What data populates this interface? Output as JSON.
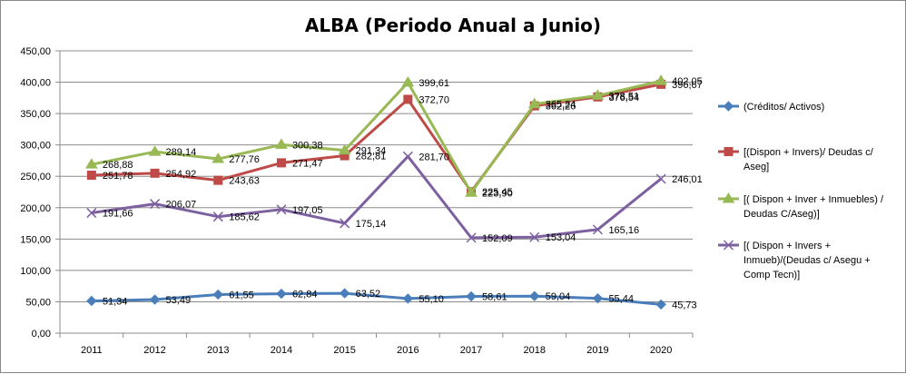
{
  "chart_data": {
    "type": "line",
    "title": "ALBA (Periodo Anual a Junio)",
    "xlabel": "",
    "ylabel": "",
    "ylim": [
      0,
      450
    ],
    "ytick_step": 50,
    "ytick_labels": [
      "0,00",
      "50,00",
      "100,00",
      "150,00",
      "200,00",
      "250,00",
      "300,00",
      "350,00",
      "400,00",
      "450,00"
    ],
    "grid": true,
    "legend_position": "right",
    "categories": [
      "2011",
      "2012",
      "2013",
      "2014",
      "2015",
      "2016",
      "2017",
      "2018",
      "2019",
      "2020"
    ],
    "series": [
      {
        "name": "(Créditos/ Activos)",
        "color": "#4a7ebb",
        "marker": "diamond",
        "values": [
          51.34,
          53.49,
          61.55,
          62.84,
          63.52,
          55.1,
          58.61,
          59.04,
          55.44,
          45.73
        ],
        "labels": [
          "51,34",
          "53,49",
          "61,55",
          "62,84",
          "63,52",
          "55,10",
          "58,61",
          "59,04",
          "55,44",
          "45,73"
        ]
      },
      {
        "name": "[(Dispon + Invers)/ Deudas c/ Aseg]",
        "color": "#be4b48",
        "marker": "square",
        "values": [
          251.78,
          254.92,
          243.63,
          271.47,
          282.81,
          372.7,
          225.45,
          362.26,
          376.54,
          396.67
        ],
        "labels": [
          "251,78",
          "254,92",
          "243,63",
          "271,47",
          "282,81",
          "372,70",
          "225,45",
          "362,26",
          "376,54",
          "396,67"
        ]
      },
      {
        "name": "[( Dispon + Inver + Inmuebles) / Deudas C/Aseg)]",
        "color": "#98b954",
        "marker": "triangle",
        "values": [
          268.88,
          289.14,
          277.76,
          300.38,
          291.34,
          399.61,
          223.9,
          365.24,
          378.51,
          402.05
        ],
        "labels": [
          "268,88",
          "289,14",
          "277,76",
          "300,38",
          "291,34",
          "399,61",
          "223,90",
          "365,24",
          "378,51",
          "402,05"
        ]
      },
      {
        "name": "[( Dispon + Invers + Inmueb)/(Deudas c/ Asegu + Comp Tecn)]",
        "color": "#7d60a0",
        "marker": "x",
        "values": [
          191.66,
          206.07,
          185.62,
          197.05,
          175.14,
          281.7,
          152.09,
          153.04,
          165.16,
          246.01
        ],
        "labels": [
          "191,66",
          "206,07",
          "185,62",
          "197,05",
          "175,14",
          "281,70",
          "152,09",
          "153,04",
          "165,16",
          "246,01"
        ]
      }
    ],
    "legend_lines": [
      [
        "(Créditos/ Activos)"
      ],
      [
        "[(Dispon + Invers)/ Deudas c/",
        "Aseg]"
      ],
      [
        "[( Dispon + Inver + Inmuebles) /",
        "Deudas C/Aseg)]"
      ],
      [
        "[( Dispon + Invers +",
        "Inmueb)/(Deudas c/ Asegu +",
        "Comp Tecn)]"
      ]
    ]
  }
}
